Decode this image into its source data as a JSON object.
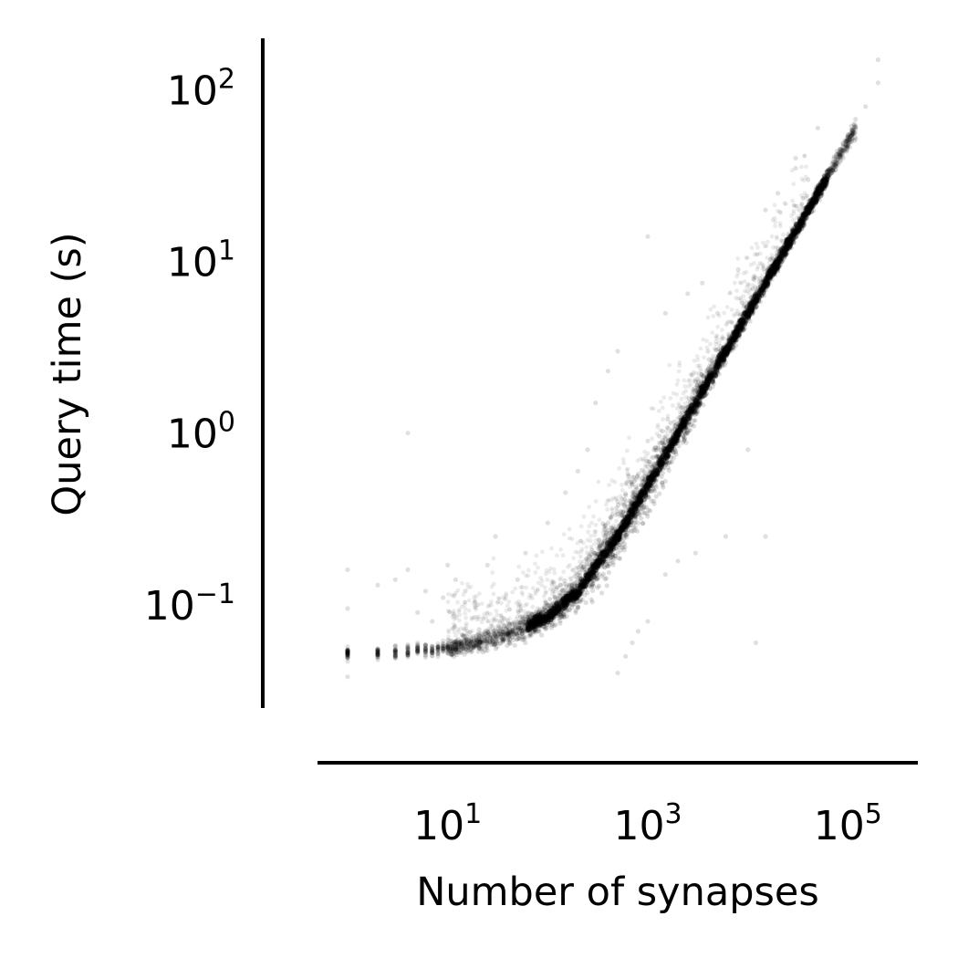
{
  "chart_data": {
    "type": "scatter",
    "title": "",
    "xlabel": "Number of synapses",
    "ylabel": "Query time (s)",
    "xscale": "log",
    "yscale": "log",
    "xlim": [
      0.5,
      500000
    ],
    "ylim": [
      0.025,
      200
    ],
    "x_ticks": [
      {
        "value": 10,
        "base": "10",
        "exp": "1"
      },
      {
        "value": 1000,
        "base": "10",
        "exp": "3"
      },
      {
        "value": 100000,
        "base": "10",
        "exp": "5"
      }
    ],
    "y_ticks": [
      {
        "value": 0.1,
        "base": "10",
        "exp": "−1"
      },
      {
        "value": 1,
        "base": "10",
        "exp": "0"
      },
      {
        "value": 10,
        "base": "10",
        "exp": "1"
      },
      {
        "value": 100,
        "base": "10",
        "exp": "2"
      }
    ],
    "grid": false,
    "legend": "none",
    "point_color": "#000000",
    "point_alpha": 0.08,
    "series": [
      {
        "trend": [
          [
            1,
            0.052
          ],
          [
            2,
            0.052
          ],
          [
            5,
            0.054
          ],
          [
            10,
            0.056
          ],
          [
            20,
            0.06
          ],
          [
            50,
            0.07
          ],
          [
            100,
            0.085
          ],
          [
            200,
            0.12
          ],
          [
            500,
            0.25
          ],
          [
            1000,
            0.5
          ],
          [
            2000,
            1.0
          ],
          [
            5000,
            2.5
          ],
          [
            10000,
            5.0
          ],
          [
            20000,
            10.0
          ],
          [
            50000,
            25.0
          ],
          [
            100000,
            50.0
          ],
          [
            200000,
            100.0
          ]
        ],
        "points": [
          [
            1,
            0.038
          ],
          [
            1,
            0.16
          ],
          [
            1,
            0.095
          ],
          [
            2,
            0.13
          ],
          [
            3,
            0.14
          ],
          [
            4,
            0.16
          ],
          [
            5,
            0.06
          ],
          [
            5,
            0.09
          ],
          [
            6,
            0.12
          ],
          [
            7,
            0.08
          ],
          [
            9,
            0.11
          ],
          [
            10,
            0.17
          ],
          [
            12,
            0.14
          ],
          [
            15,
            0.12
          ],
          [
            20,
            0.1
          ],
          [
            25,
            0.17
          ],
          [
            30,
            0.25
          ],
          [
            50,
            0.14
          ],
          [
            60,
            0.2
          ],
          [
            100,
            0.3
          ],
          [
            150,
            0.45
          ],
          [
            200,
            0.6
          ],
          [
            250,
            0.8
          ],
          [
            300,
            1.5
          ],
          [
            400,
            2.3
          ],
          [
            500,
            0.04
          ],
          [
            600,
            0.05
          ],
          [
            700,
            0.06
          ],
          [
            800,
            0.07
          ],
          [
            1000,
            0.08
          ],
          [
            1500,
            0.15
          ],
          [
            2000,
            0.18
          ],
          [
            3000,
            0.2
          ],
          [
            1000,
            14
          ],
          [
            500,
            3.0
          ],
          [
            1500,
            5.0
          ],
          [
            2500,
            6.5
          ],
          [
            3500,
            7.5
          ],
          [
            6000,
            0.25
          ],
          [
            10000,
            0.8
          ],
          [
            15000,
            20
          ],
          [
            40000,
            30
          ],
          [
            30000,
            35
          ],
          [
            20000,
            12
          ],
          [
            5000,
            5
          ],
          [
            50000,
            60
          ],
          [
            200000,
            150
          ],
          [
            200000,
            110
          ],
          [
            150000,
            80
          ],
          [
            100000,
            55
          ],
          [
            30000,
            40
          ],
          [
            20000,
            25
          ],
          [
            8000,
            9
          ],
          [
            4000,
            3
          ],
          [
            3000,
            2
          ],
          [
            1000,
            0.9
          ],
          [
            700,
            0.5
          ],
          [
            400,
            0.3
          ],
          [
            200,
            0.15
          ],
          [
            100,
            0.1
          ],
          [
            60,
            0.08
          ],
          [
            40,
            0.07
          ],
          [
            15000,
            0.25
          ],
          [
            12000,
            0.06
          ],
          [
            4,
            1.0
          ],
          [
            500,
            0.2
          ],
          [
            800,
            0.3
          ]
        ]
      }
    ]
  }
}
